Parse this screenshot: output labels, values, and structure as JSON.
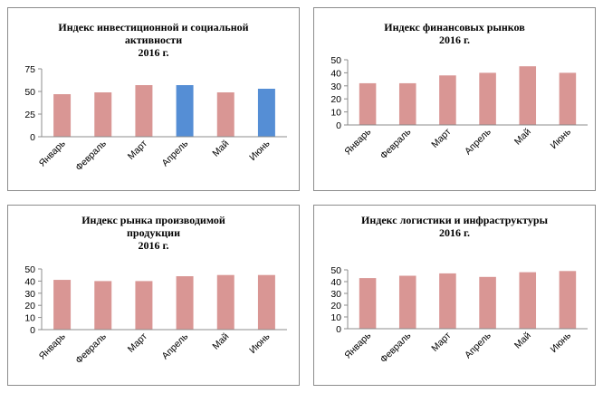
{
  "chart_data": [
    {
      "type": "bar",
      "title": "Индекс  инвестиционной  и  социальной\nактивности\n2016 г.",
      "categories": [
        "Январь",
        "Февраль",
        "Март",
        "Апрель",
        "Май",
        "Июнь"
      ],
      "values": [
        47,
        49,
        57,
        57,
        49,
        53
      ],
      "ylim": [
        0,
        75
      ],
      "yticks": [
        0,
        25,
        50,
        75
      ],
      "bar_colors": [
        "#d99694",
        "#d99694",
        "#d99694",
        "#558ed5",
        "#d99694",
        "#558ed5"
      ]
    },
    {
      "type": "bar",
      "title": "Индекс  финансовых  рынков\n2016 г.",
      "categories": [
        "Январь",
        "Февраль",
        "Март",
        "Апрель",
        "Май",
        "Июнь"
      ],
      "values": [
        32,
        32,
        38,
        40,
        45,
        40
      ],
      "ylim": [
        0,
        50
      ],
      "yticks": [
        0,
        10,
        20,
        30,
        40,
        50
      ],
      "bar_colors": [
        "#d99694",
        "#d99694",
        "#d99694",
        "#d99694",
        "#d99694",
        "#d99694"
      ]
    },
    {
      "type": "bar",
      "title": "Индекс  рынка  производимой\nпродукции\n2016 г.",
      "categories": [
        "Январь",
        "Февраль",
        "Март",
        "Апрель",
        "Май",
        "Июнь"
      ],
      "values": [
        41,
        40,
        40,
        44,
        45,
        45
      ],
      "ylim": [
        0,
        50
      ],
      "yticks": [
        0,
        10,
        20,
        30,
        40,
        50
      ],
      "bar_colors": [
        "#d99694",
        "#d99694",
        "#d99694",
        "#d99694",
        "#d99694",
        "#d99694"
      ]
    },
    {
      "type": "bar",
      "title": "Индекс  логистики  и  инфраструктуры\n2016 г.",
      "categories": [
        "Январь",
        "Февраль",
        "Март",
        "Апрель",
        "Май",
        "Июнь"
      ],
      "values": [
        43,
        45,
        47,
        44,
        48,
        49
      ],
      "ylim": [
        0,
        50
      ],
      "yticks": [
        0,
        10,
        20,
        30,
        40,
        50
      ],
      "bar_colors": [
        "#d99694",
        "#d99694",
        "#d99694",
        "#d99694",
        "#d99694",
        "#d99694"
      ]
    }
  ]
}
